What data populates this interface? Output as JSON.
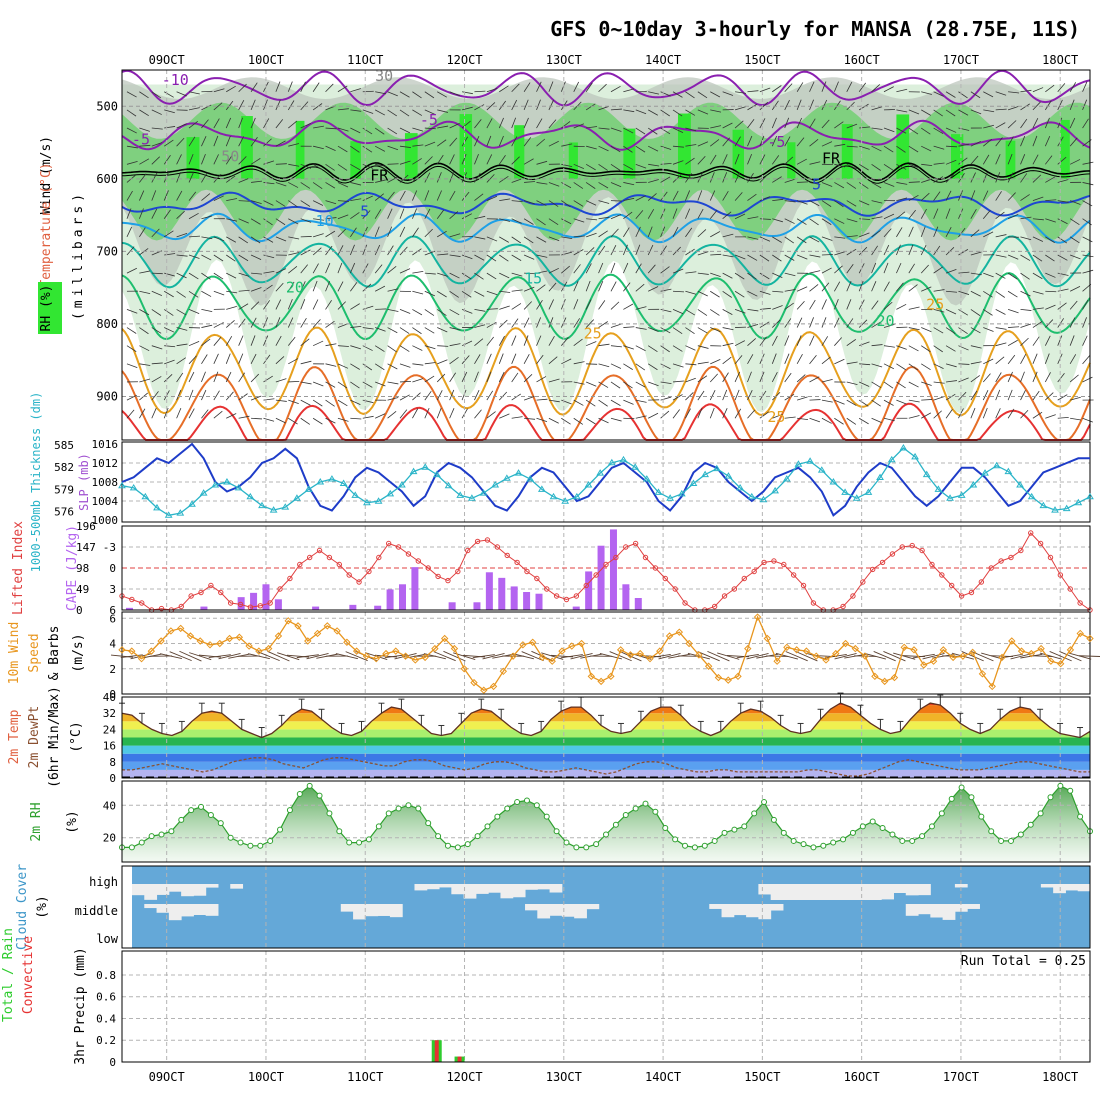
{
  "chart_data": {
    "type": "meteogram",
    "title": "GFS 0~10day 3-hourly for MANSA (28.75E, 11S)",
    "x_ticks": [
      "09OCT",
      "10OCT",
      "11OCT",
      "12OCT",
      "13OCT",
      "14OCT",
      "15OCT",
      "16OCT",
      "17OCT",
      "18OCT"
    ],
    "time_range_days": [
      8.55,
      18.3
    ],
    "colors": {
      "rh_green_light": "#dcefdc",
      "rh_green_mid": "#7fd07f",
      "rh_green_bright": "#32e632",
      "rh_gray": "#b9c3b9",
      "temp_purple": "#8a1fb0",
      "temp_blue": "#1e46d2",
      "temp_cyan": "#1ea0e6",
      "temp_teal": "#14b4a0",
      "temp_green": "#1ebe6e",
      "temp_orange": "#e6a01e",
      "temp_dorange": "#e66e28",
      "temp_red": "#e63232",
      "slp": "#1e3cc8",
      "thickness": "#2ab4c8",
      "lifted_index": "#e04040",
      "cape": "#b464f0",
      "wind_speed": "#e8961e",
      "rh2m": "#2ea02e",
      "cloud": "#64a8d8",
      "cloud_clear": "#eeeeee",
      "precip_total": "#2ecc2e",
      "precip_conv": "#e63232"
    },
    "panels": [
      {
        "name": "upper-air",
        "ylabel_lines": [
          "Wind (m/s)",
          "Temperature (°C)",
          "RH (%)"
        ],
        "ylabel_right": "(millibars)",
        "y_ticks": [
          500,
          600,
          700,
          800,
          900
        ],
        "y_range": [
          450,
          960
        ],
        "isotherm_labels": [
          {
            "text": "-10",
            "day": 8.95,
            "p": 471,
            "color": "#8a1fb0"
          },
          {
            "text": "-5",
            "day": 11.55,
            "p": 526,
            "color": "#8a1fb0"
          },
          {
            "text": "-5",
            "day": 15.05,
            "p": 556,
            "color": "#8a1fb0"
          },
          {
            "text": "-5",
            "day": 8.65,
            "p": 553,
            "color": "#8a1fb0"
          },
          {
            "text": "FR",
            "day": 11.05,
            "p": 602,
            "color": "#000000"
          },
          {
            "text": "FR",
            "day": 15.6,
            "p": 579,
            "color": "#000000"
          },
          {
            "text": "5",
            "day": 10.95,
            "p": 652,
            "color": "#1e46d2"
          },
          {
            "text": "5",
            "day": 15.5,
            "p": 615,
            "color": "#1e46d2"
          },
          {
            "text": "10",
            "day": 10.5,
            "p": 665,
            "color": "#1ea0e6"
          },
          {
            "text": "15",
            "day": 12.6,
            "p": 744,
            "color": "#14b4a0"
          },
          {
            "text": "20",
            "day": 10.2,
            "p": 757,
            "color": "#1ebe6e"
          },
          {
            "text": "20",
            "day": 16.15,
            "p": 803,
            "color": "#1ebe6e"
          },
          {
            "text": "25",
            "day": 13.2,
            "p": 820,
            "color": "#e6a01e"
          },
          {
            "text": "25",
            "day": 16.65,
            "p": 780,
            "color": "#e6a01e"
          },
          {
            "text": "25",
            "day": 15.05,
            "p": 935,
            "color": "#e6a01e"
          },
          {
            "text": "30",
            "day": 11.1,
            "p": 465,
            "color": "#888888"
          },
          {
            "text": "50",
            "day": 9.55,
            "p": 576,
            "color": "#888888"
          }
        ]
      },
      {
        "name": "slp-thickness",
        "ylabel_left": "1000-500mb Thickness (dm)",
        "ylabel_right": "SLP (mb)",
        "y_ticks_left": [
          576,
          579,
          582,
          585
        ],
        "y_ticks_right": [
          1000,
          1004,
          1008,
          1012,
          1016
        ],
        "slp": [
          1008,
          1009,
          1011,
          1013,
          1012,
          1014,
          1016,
          1013,
          1008,
          1006,
          1007,
          1009,
          1012,
          1013,
          1015,
          1013,
          1007,
          1003,
          1002,
          1005,
          1009,
          1011,
          1010,
          1008,
          1006,
          1003,
          1005,
          1010,
          1012,
          1011,
          1009,
          1006,
          1003,
          1002,
          1005,
          1009,
          1011,
          1010,
          1007,
          1004,
          1005,
          1008,
          1011,
          1012,
          1010,
          1008,
          1004,
          1002,
          1005,
          1010,
          1012,
          1011,
          1008,
          1006,
          1004,
          1006,
          1009,
          1010,
          1011,
          1009,
          1006,
          1001,
          1003,
          1007,
          1010,
          1012,
          1011,
          1008,
          1005,
          1003,
          1005,
          1008,
          1011,
          1011,
          1009,
          1006,
          1003,
          1004,
          1007,
          1010,
          1011,
          1012,
          1013,
          1013
        ],
        "thickness": [
          579.5,
          579.2,
          578.0,
          576.5,
          575.5,
          575.8,
          577.0,
          578.5,
          579.6,
          580.0,
          579.2,
          578.0,
          576.8,
          576.2,
          576.6,
          577.8,
          579.0,
          580.0,
          580.4,
          579.8,
          578.2,
          577.2,
          577.4,
          578.4,
          579.6,
          581.4,
          582.0,
          581.0,
          579.5,
          578.2,
          577.8,
          578.5,
          579.6,
          580.5,
          581.2,
          580.4,
          579.0,
          578.0,
          577.4,
          578.0,
          579.6,
          581.2,
          582.6,
          583.0,
          582.0,
          580.4,
          578.6,
          577.8,
          578.4,
          579.8,
          581.0,
          581.8,
          580.8,
          579.2,
          578.0,
          577.6,
          578.8,
          580.4,
          582.4,
          582.8,
          581.6,
          580.0,
          578.6,
          577.8,
          578.6,
          580.6,
          583.0,
          584.6,
          583.4,
          581.0,
          579.0,
          577.8,
          578.2,
          579.6,
          581.2,
          582.2,
          581.4,
          579.6,
          578.0,
          576.8,
          576.2,
          576.4,
          577.2,
          578.0
        ]
      },
      {
        "name": "lifted-index-cape",
        "ylabel_left": "Lifted Index",
        "ylabel_right": "CAPE (J/kg)",
        "y_ticks_left": [
          -3,
          0,
          3,
          6
        ],
        "y_ticks_right": [
          0,
          49,
          98,
          147,
          196
        ],
        "lifted_index": [
          4,
          4.5,
          5,
          6,
          5.8,
          6,
          5.5,
          4,
          3.5,
          2.5,
          3.5,
          5,
          5.2,
          5.6,
          5.4,
          5.0,
          3,
          1.5,
          -0.5,
          -1.5,
          -2.5,
          -1.5,
          -0.5,
          1,
          2,
          0.5,
          -1.5,
          -3.5,
          -3,
          -2,
          -1,
          0,
          1.2,
          1.8,
          0.5,
          -2.5,
          -3.8,
          -4,
          -3,
          -1.8,
          -0.8,
          0.5,
          1.5,
          3,
          4,
          4.5,
          4.0,
          2.5,
          1,
          -0.5,
          -1.5,
          -3,
          -3.5,
          -1.5,
          0,
          1.5,
          3,
          5,
          6,
          6,
          5.5,
          4,
          3,
          1.5,
          0.5,
          -0.8,
          -1,
          -0.5,
          1,
          2.5,
          5,
          6,
          6,
          5.5,
          4,
          2,
          0.2,
          -0.8,
          -2,
          -3,
          -3.2,
          -2.5,
          -0.5,
          1,
          2.5,
          4,
          3.5,
          2,
          0,
          -1,
          -1.5,
          -2.5,
          -5,
          -3.5,
          -1.5,
          1,
          3,
          5,
          6
        ],
        "cape": [
          5,
          0,
          0,
          0,
          0,
          0,
          8,
          0,
          0,
          30,
          40,
          60,
          25,
          0,
          0,
          8,
          0,
          0,
          12,
          0,
          10,
          48,
          60,
          100,
          0,
          0,
          18,
          0,
          18,
          88,
          75,
          55,
          42,
          38,
          0,
          0,
          8,
          90,
          150,
          188,
          60,
          28,
          0,
          0,
          0,
          0,
          0,
          0,
          0,
          0,
          0,
          0,
          0,
          0,
          0,
          0,
          0,
          0,
          0,
          0,
          0,
          0,
          0,
          0,
          0,
          0,
          0,
          0,
          0,
          0,
          0,
          0,
          0,
          0,
          0,
          0,
          0,
          0,
          0,
          0,
          0,
          0,
          0,
          0,
          0,
          0,
          0,
          0,
          0,
          0,
          0,
          0,
          0,
          0,
          0,
          0,
          0,
          0
        ]
      },
      {
        "name": "wind10m",
        "ylabel_lines": [
          "10m Wind",
          "Speed",
          "& Barbs",
          "(m/s)"
        ],
        "y_ticks": [
          0,
          2,
          4,
          6
        ],
        "speed": [
          3.5,
          3.4,
          2.8,
          3.4,
          4.2,
          5.0,
          5.2,
          4.6,
          4.2,
          3.9,
          4.0,
          4.4,
          4.5,
          3.8,
          3.4,
          3.6,
          4.6,
          5.8,
          5.4,
          4.2,
          4.8,
          5.4,
          5.0,
          4.1,
          3.4,
          3.0,
          2.8,
          3.2,
          3.4,
          3.0,
          2.7,
          2.9,
          3.6,
          4.4,
          3.6,
          2.0,
          0.9,
          0.3,
          0.6,
          1.8,
          3.0,
          3.9,
          4.1,
          2.9,
          2.6,
          3.4,
          3.8,
          4.0,
          1.4,
          1.0,
          1.4,
          3.5,
          3.1,
          3.2,
          2.8,
          3.4,
          4.6,
          4.9,
          4.0,
          3.1,
          2.2,
          1.3,
          1.1,
          1.4,
          3.6,
          6.1,
          4.4,
          2.6,
          3.7,
          3.5,
          3.4,
          3.0,
          2.7,
          3.2,
          4.0,
          3.6,
          3.0,
          1.4,
          1.0,
          1.3,
          3.7,
          3.5,
          2.3,
          2.6,
          3.5,
          2.9,
          3.0,
          3.3,
          1.6,
          0.6,
          2.9,
          4.2,
          3.4,
          3.2,
          3.6,
          2.6,
          2.4,
          3.5,
          4.8,
          4.4
        ]
      },
      {
        "name": "temp2m",
        "ylabel_lines": [
          "2m Temp",
          "2m DewPt",
          "(6hr Min/Max)",
          "(°C)"
        ],
        "y_ticks": [
          0,
          8,
          16,
          24,
          32,
          40
        ],
        "y_ticks_labels": [
          "0",
          "8",
          "16",
          "24",
          "32",
          "40"
        ],
        "temp_range": [
          0,
          40
        ],
        "temp": [
          32,
          31,
          27,
          24,
          22,
          21,
          23,
          28,
          32,
          33,
          32,
          28,
          24,
          22,
          20,
          22,
          26,
          31,
          34,
          33,
          29,
          25,
          22,
          21,
          23,
          28,
          32,
          35,
          34,
          30,
          26,
          22,
          21,
          22,
          27,
          32,
          34,
          33,
          29,
          25,
          22,
          21,
          23,
          29,
          33,
          35,
          35,
          31,
          26,
          23,
          22,
          23,
          28,
          33,
          35,
          35,
          31,
          26,
          23,
          21,
          23,
          28,
          32,
          34,
          33,
          30,
          26,
          23,
          22,
          23,
          29,
          34,
          37,
          35,
          31,
          27,
          24,
          22,
          23,
          29,
          34,
          37,
          36,
          32,
          27,
          24,
          22,
          24,
          29,
          33,
          35,
          34,
          29,
          25,
          22,
          21,
          20,
          23
        ],
        "dewpt": [
          4,
          4,
          5,
          6,
          7,
          6,
          5,
          4,
          3,
          4,
          6,
          8,
          9,
          10,
          10,
          9,
          7,
          6,
          5,
          7,
          9,
          10,
          10,
          9,
          8,
          7,
          6,
          6,
          8,
          9,
          9,
          8,
          6,
          5,
          4,
          5,
          7,
          8,
          8,
          7,
          5,
          4,
          3,
          3,
          4,
          5,
          4,
          3,
          2,
          3,
          5,
          7,
          8,
          8,
          7,
          5,
          4,
          3,
          3,
          4,
          4,
          3,
          3,
          3,
          3,
          3,
          3,
          3,
          4,
          4,
          3,
          2,
          1,
          1,
          2,
          4,
          6,
          8,
          9,
          8,
          7,
          6,
          5,
          4,
          4,
          4,
          5,
          6,
          7,
          8,
          8,
          7,
          6,
          5,
          4,
          3,
          3
        ]
      },
      {
        "name": "rh2m",
        "ylabel_left": "2m RH",
        "ylabel_right": "(%)",
        "y_ticks": [
          20,
          40
        ],
        "rh": [
          14,
          14,
          17,
          21,
          22,
          24,
          31,
          37,
          39,
          34,
          29,
          20,
          17,
          15,
          15,
          18,
          25,
          37,
          47,
          52,
          46,
          35,
          24,
          17,
          17,
          19,
          27,
          35,
          38,
          40,
          38,
          29,
          21,
          15,
          14,
          16,
          21,
          27,
          33,
          38,
          42,
          43,
          40,
          33,
          24,
          17,
          14,
          14,
          16,
          22,
          28,
          34,
          38,
          41,
          36,
          26,
          19,
          15,
          14,
          15,
          18,
          23,
          25,
          27,
          35,
          42,
          31,
          23,
          18,
          16,
          14,
          15,
          17,
          19,
          23,
          27,
          30,
          26,
          22,
          18,
          18,
          21,
          27,
          35,
          44,
          51,
          45,
          33,
          24,
          18,
          18,
          22,
          28,
          35,
          45,
          52,
          49,
          33,
          24
        ],
        "rh_start_day": 8.55
      },
      {
        "name": "cloud-cover",
        "ylabel_lines": [
          "Cloud Cover",
          "(%)"
        ],
        "levels": [
          "high",
          "middle",
          "low"
        ]
      },
      {
        "name": "precip",
        "ylabel_lines": [
          "Total / Rain",
          "Convective"
        ],
        "ylabel_right": "3hr Precip (mm)",
        "y_ticks": [
          0,
          0.2,
          0.4,
          0.6,
          0.8
        ],
        "run_total_label": "Run Total = 0.25",
        "bars": [
          {
            "day": 11.72,
            "total": 0.2,
            "conv": 0.2
          },
          {
            "day": 11.95,
            "total": 0.05,
            "conv": 0.05
          }
        ]
      }
    ]
  }
}
